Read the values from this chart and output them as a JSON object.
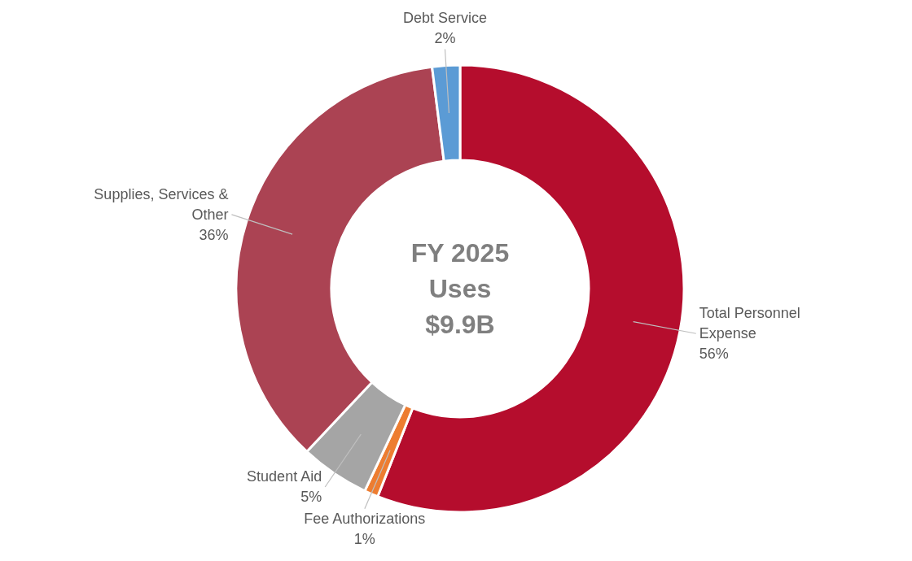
{
  "chart_data": {
    "type": "donut",
    "title": "FY 2025 Uses",
    "subtitle": "$9.9B",
    "categories": [
      "Total Personnel Expense",
      "Fee Authorizations",
      "Student Aid",
      "Supplies, Services & Other",
      "Debt Service"
    ],
    "values": [
      56,
      1,
      5,
      36,
      2
    ],
    "colors": [
      "#b50d2d",
      "#ed7d31",
      "#a5a5a5",
      "#ab4353",
      "#5b9bd5"
    ],
    "value_labels": [
      "56%",
      "1%",
      "5%",
      "36%",
      "2%"
    ],
    "legend": false
  }
}
